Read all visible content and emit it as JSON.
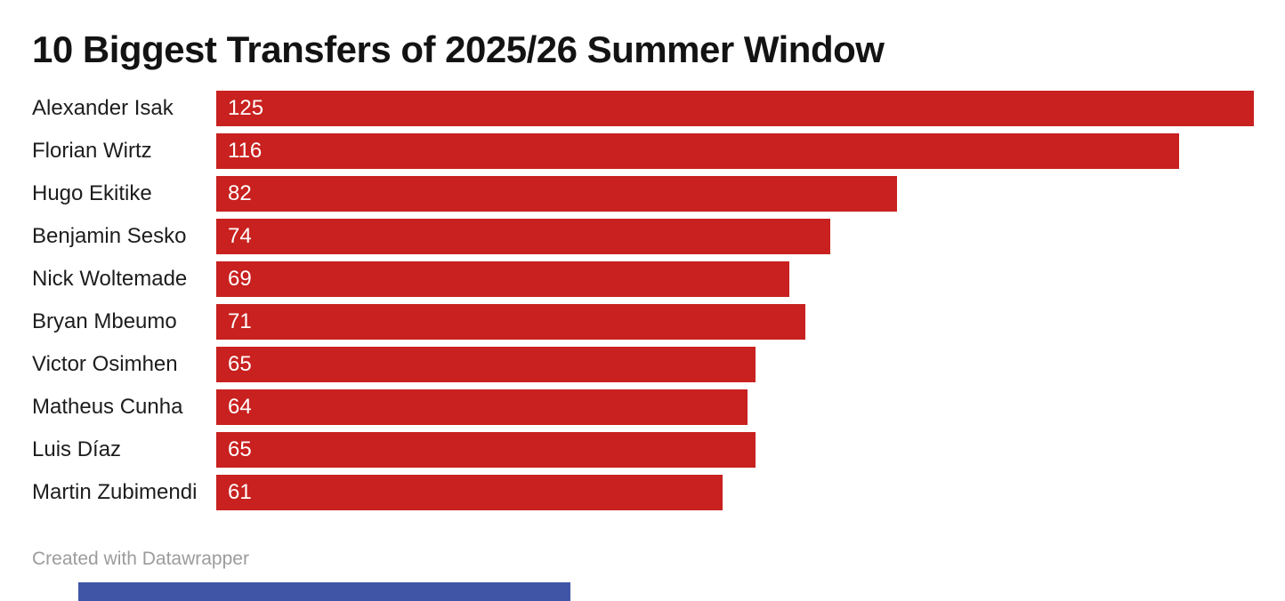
{
  "title": "10 Biggest Transfers of 2025/26 Summer Window",
  "footer": {
    "credit": "Created with Datawrapper"
  },
  "colors": {
    "bar": "#c8211f",
    "bar_value_text": "#ffffff",
    "row_label_text": "#1d1d1d",
    "title_text": "#131313",
    "credit_text": "#9c9c9c",
    "bottom_bar": "#4155a7",
    "background": "#ffffff"
  },
  "chart_data": {
    "type": "bar",
    "orientation": "horizontal",
    "title": "10 Biggest Transfers of 2025/26 Summer Window",
    "categories": [
      "Alexander Isak",
      "Florian Wirtz",
      "Hugo Ekitike",
      "Benjamin Sesko",
      "Nick Woltemade",
      "Bryan Mbeumo",
      "Victor Osimhen",
      "Matheus Cunha",
      "Luis Díaz",
      "Martin Zubimendi"
    ],
    "values": [
      125,
      116,
      82,
      74,
      69,
      71,
      65,
      64,
      65,
      61
    ],
    "value_labels": [
      "125",
      "116",
      "82",
      "74",
      "69",
      "71",
      "65",
      "64",
      "65",
      "61"
    ],
    "xlabel": "",
    "ylabel": "",
    "xlim": [
      0,
      125
    ],
    "grid": false,
    "legend": false,
    "value_label_position": "inside-start",
    "bar_color": "#c8211f"
  }
}
